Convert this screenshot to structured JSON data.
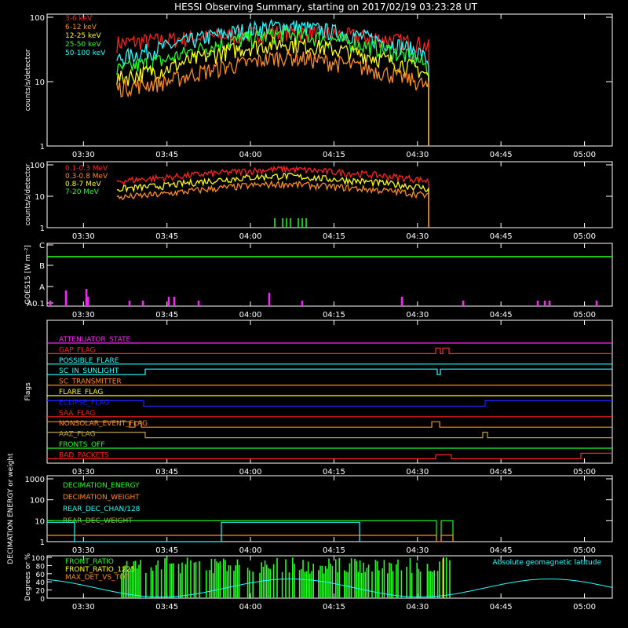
{
  "title": "HESSI Observing Summary, starting on 2017/02/19 03:23:28 UT",
  "colors": {
    "background": "#000000",
    "axes": "#ffffff",
    "red": "#ff2020",
    "orange": "#ff8c1a",
    "yellow": "#ffff00",
    "green": "#20ff20",
    "cyan": "#20ffff",
    "magenta": "#ff20ff",
    "blue": "#2020ff",
    "olive": "#b8a040"
  },
  "x_ticks": [
    "03:30",
    "03:45",
    "04:00",
    "04:15",
    "04:30",
    "04:45",
    "05:00"
  ],
  "chart_data": [
    {
      "id": "lightcurves-low",
      "type": "line",
      "ylabel": "counts/s/detector",
      "yscale": "log",
      "ylim": [
        1,
        100
      ],
      "y_ticks": [
        "1",
        "10",
        "100"
      ],
      "x_ticks": [
        "03:30",
        "03:45",
        "04:00",
        "04:15",
        "04:30",
        "04:45",
        "05:00"
      ],
      "series": [
        {
          "name": "3-6 keV",
          "color": "#ff2020",
          "x": [
            "03:36",
            "03:45",
            "04:00",
            "04:06",
            "04:15",
            "04:30",
            "04:32"
          ],
          "y": [
            40,
            45,
            55,
            60,
            55,
            40,
            35
          ]
        },
        {
          "name": "6-12 keV",
          "color": "#ff8c1a",
          "x": [
            "03:36",
            "03:45",
            "04:00",
            "04:06",
            "04:15",
            "04:30",
            "04:32"
          ],
          "y": [
            8,
            10,
            20,
            25,
            20,
            10,
            8
          ]
        },
        {
          "name": "12-25 keV",
          "color": "#ffff00",
          "x": [
            "03:36",
            "03:45",
            "04:00",
            "04:06",
            "04:15",
            "04:30",
            "04:32"
          ],
          "y": [
            11,
            16,
            35,
            40,
            32,
            16,
            12
          ]
        },
        {
          "name": "25-50 keV",
          "color": "#20ff20",
          "x": [
            "03:36",
            "03:45",
            "04:00",
            "04:06",
            "04:15",
            "04:30",
            "04:32"
          ],
          "y": [
            15,
            22,
            48,
            55,
            45,
            22,
            16
          ]
        },
        {
          "name": "50-100 keV",
          "color": "#20ffff",
          "x": [
            "03:36",
            "03:45",
            "04:00",
            "04:06",
            "04:15",
            "04:30",
            "04:32"
          ],
          "y": [
            22,
            35,
            65,
            75,
            60,
            30,
            20
          ]
        }
      ]
    },
    {
      "id": "lightcurves-high",
      "type": "line",
      "ylabel": "counts/s/detector",
      "yscale": "log",
      "ylim": [
        1,
        100
      ],
      "y_ticks": [
        "1",
        "10",
        "100"
      ],
      "x_ticks": [
        "03:30",
        "03:45",
        "04:00",
        "04:15",
        "04:30",
        "04:45",
        "05:00"
      ],
      "series": [
        {
          "name": "0.1-0.3 MeV",
          "color": "#ff2020",
          "x": [
            "03:36",
            "03:45",
            "04:00",
            "04:06",
            "04:15",
            "04:30",
            "04:32"
          ],
          "y": [
            30,
            40,
            65,
            75,
            60,
            35,
            30
          ]
        },
        {
          "name": "0.3-0.8 MeV",
          "color": "#ff8c1a",
          "x": [
            "03:36",
            "03:45",
            "04:00",
            "04:06",
            "04:15",
            "04:30",
            "04:32"
          ],
          "y": [
            9,
            12,
            22,
            25,
            20,
            12,
            10
          ]
        },
        {
          "name": "0.8-7 MeV",
          "color": "#ffff00",
          "x": [
            "03:36",
            "03:45",
            "04:00",
            "04:06",
            "04:15",
            "04:30",
            "04:32"
          ],
          "y": [
            17,
            22,
            40,
            45,
            35,
            20,
            17
          ]
        },
        {
          "name": "7-20 MeV",
          "color": "#20ff20",
          "x": [
            "04:00",
            "04:05",
            "04:10"
          ],
          "y": [
            1.5,
            1.5,
            1.5
          ]
        }
      ]
    },
    {
      "id": "goes",
      "type": "line",
      "ylabel": "GOES15 [W m⁻²]",
      "y_ticks": [
        "A0.1",
        "A",
        "B",
        "C"
      ],
      "x_ticks": [
        "03:30",
        "03:45",
        "04:00",
        "04:15",
        "04:30",
        "04:45",
        "05:00"
      ],
      "series": [
        {
          "name": "",
          "color": "#20ff20",
          "x": [
            "03:23",
            "04:00",
            "04:15",
            "04:30",
            "04:45",
            "05:05"
          ],
          "y": [
            0.72,
            0.7,
            0.7,
            0.7,
            0.72,
            0.73
          ]
        }
      ]
    },
    {
      "id": "flags",
      "type": "line",
      "ylabel": "Flags",
      "x_ticks": [
        "03:30",
        "03:45",
        "04:00",
        "04:15",
        "04:30",
        "04:45",
        "05:00"
      ],
      "flags": [
        {
          "name": "ATTENUATOR_STATE",
          "color": "#ff20ff"
        },
        {
          "name": "GAP_FLAG",
          "color": "#ff2020"
        },
        {
          "name": "POSSIBLE_FLARE",
          "color": "#20ffff"
        },
        {
          "name": "SC_IN_SUNLIGHT",
          "color": "#20ffff"
        },
        {
          "name": "SC_TRANSMITTER",
          "color": "#ff8c1a"
        },
        {
          "name": "FLARE_FLAG",
          "color": "#ffff00"
        },
        {
          "name": "ECLIPSE_FLAG",
          "color": "#2020ff"
        },
        {
          "name": "SAA_FLAG",
          "color": "#ff2020"
        },
        {
          "name": "NONSOLAR_EVENT_FLAG",
          "color": "#ff8c1a"
        },
        {
          "name": "AAZ_FLAG",
          "color": "#b8a040"
        },
        {
          "name": "FRONTS_OFF",
          "color": "#20ff20"
        },
        {
          "name": "BAD_PACKETS",
          "color": "#ff2020"
        }
      ]
    },
    {
      "id": "decimation",
      "type": "line",
      "ylabel": "DECIMATION ENERGY or weight",
      "yscale": "log",
      "ylim": [
        1,
        1000
      ],
      "y_ticks": [
        "1",
        "10",
        "100",
        "1000"
      ],
      "x_ticks": [
        "03:30",
        "03:45",
        "04:00",
        "04:15",
        "04:30",
        "04:45",
        "05:00"
      ],
      "series": [
        {
          "name": "DECIMATION_ENERGY",
          "color": "#20ff20"
        },
        {
          "name": "DECIMATION_WEIGHT",
          "color": "#ff8c1a"
        },
        {
          "name": "REAR_DEC_CHAN/128",
          "color": "#20ffff"
        },
        {
          "name": "REAR_DEC_WEIGHT",
          "color": "#b8a040"
        }
      ]
    },
    {
      "id": "ratios",
      "type": "line",
      "ylabel": "Degrees or %",
      "ylim": [
        0,
        100
      ],
      "y_ticks": [
        "0",
        "20",
        "40",
        "60",
        "80",
        "100"
      ],
      "x_ticks": [
        "03:30",
        "03:45",
        "04:00",
        "04:15",
        "04:30",
        "04:45",
        "05:00"
      ],
      "series": [
        {
          "name": "FRONT_RATIO",
          "color": "#20ff20"
        },
        {
          "name": "FRONT_RATIO_1225",
          "color": "#ffff00"
        },
        {
          "name": "MAX_DET_VS_TOT",
          "color": "#ff8c1a"
        },
        {
          "name": "Absolute geomagnetic latitude",
          "color": "#20ffff"
        }
      ]
    }
  ]
}
